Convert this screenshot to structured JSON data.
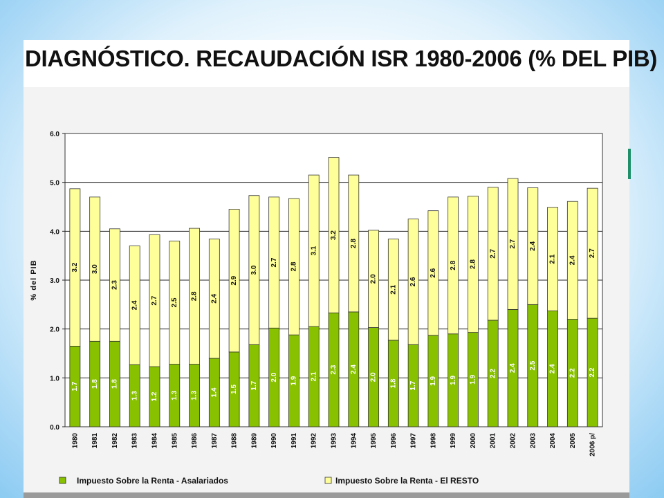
{
  "chart_data": {
    "type": "bar",
    "stacked": true,
    "title": "DIAGNÓSTICO. RECAUDACIÓN ISR 1980-2006 (% DEL PIB)",
    "ylabel": "% del PIB",
    "xlabel": "",
    "ylim": [
      0,
      6
    ],
    "yticks": [
      "0.0",
      "1.0",
      "2.0",
      "3.0",
      "4.0",
      "5.0",
      "6.0"
    ],
    "grid": true,
    "legend_position": "bottom",
    "categories": [
      "1980",
      "1981",
      "1982",
      "1983",
      "1984",
      "1985",
      "1986",
      "1987",
      "1988",
      "1989",
      "1990",
      "1991",
      "1992",
      "1993",
      "1994",
      "1995",
      "1996",
      "1997",
      "1998",
      "1999",
      "2000",
      "2001",
      "2002",
      "2003",
      "2004",
      "2005",
      "2006 p/"
    ],
    "series": [
      {
        "name": "Impuesto Sobre la Renta - Asalariados",
        "color": "#88c100",
        "values": [
          1.65,
          1.75,
          1.75,
          1.27,
          1.23,
          1.28,
          1.28,
          1.4,
          1.53,
          1.68,
          2.02,
          1.88,
          2.05,
          2.33,
          2.35,
          2.03,
          1.77,
          1.68,
          1.87,
          1.9,
          1.93,
          2.18,
          2.4,
          2.5,
          2.37,
          2.2,
          2.22
        ],
        "labels": [
          "1.7",
          "1.8",
          "1.8",
          "1.3",
          "1.2",
          "1.3",
          "1.3",
          "1.4",
          "1.5",
          "1.7",
          "2.0",
          "1.9",
          "2.1",
          "2.3",
          "2.4",
          "2.0",
          "1.8",
          "1.7",
          "1.9",
          "1.9",
          "1.9",
          "2.2",
          "2.4",
          "2.5",
          "2.4",
          "2.2",
          "2.2"
        ]
      },
      {
        "name": "Impuesto Sobre la Renta - El RESTO",
        "color": "#ffff9a",
        "values": [
          3.22,
          2.95,
          2.3,
          2.43,
          2.7,
          2.52,
          2.78,
          2.44,
          2.92,
          3.05,
          2.68,
          2.79,
          3.1,
          3.18,
          2.8,
          1.99,
          2.07,
          2.57,
          2.55,
          2.8,
          2.79,
          2.72,
          2.68,
          2.39,
          2.12,
          2.41,
          2.66
        ],
        "labels": [
          "3.2",
          "3.0",
          "2.3",
          "2.4",
          "2.7",
          "2.5",
          "2.8",
          "2.4",
          "2.9",
          "3.0",
          "2.7",
          "2.8",
          "3.1",
          "3.2",
          "2.8",
          "2.0",
          "2.1",
          "2.6",
          "2.6",
          "2.8",
          "2.8",
          "2.7",
          "2.7",
          "2.4",
          "2.1",
          "2.4",
          "2.7"
        ]
      }
    ]
  }
}
